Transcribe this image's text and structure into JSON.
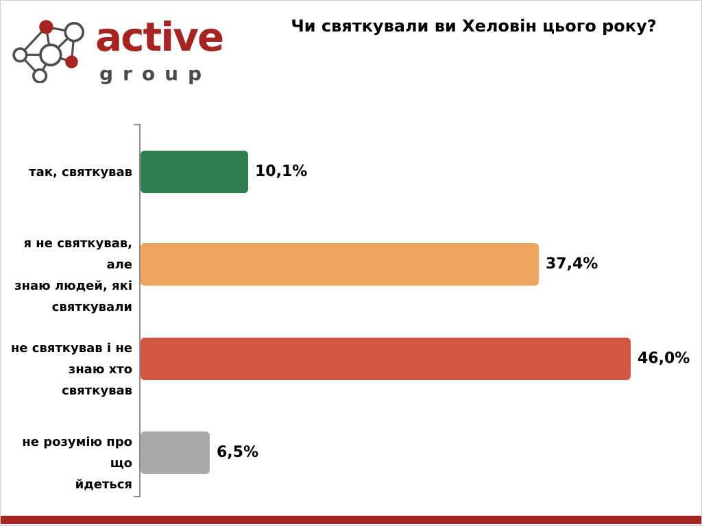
{
  "header": {
    "logo": {
      "brand": "active",
      "sub": "group",
      "brand_color": "#a32421",
      "sub_color": "#4a4a4a",
      "line_color": "#4f4f4f"
    }
  },
  "chart_data": {
    "type": "bar",
    "orientation": "horizontal",
    "title": "Чи святкували ви Хеловін цього року?",
    "categories": [
      "так, святкував",
      "я не святкував, але знаю людей, які святкували",
      "не святкував і не знаю хто святкував",
      "не розумію про що йдеться"
    ],
    "category_lines": [
      [
        "так, святкував"
      ],
      [
        "я не святкував, але",
        "знаю людей, які",
        "святкували"
      ],
      [
        "не святкував і не",
        "знаю хто святкував"
      ],
      [
        "не розумію про що",
        "йдеться"
      ]
    ],
    "values": [
      10.1,
      37.4,
      46.0,
      6.5
    ],
    "value_labels": [
      "10,1%",
      "37,4%",
      "46,0%",
      "6,5%"
    ],
    "bar_colors": [
      "#2e7d53",
      "#f0a55e",
      "#d05843",
      "#a9a9a9"
    ],
    "xlim": [
      0,
      50
    ],
    "xlabel": "",
    "ylabel": "",
    "grid": false,
    "legend": false,
    "axis_color": "#8f8f8f"
  },
  "footer": {
    "band_color": "#a32421"
  }
}
